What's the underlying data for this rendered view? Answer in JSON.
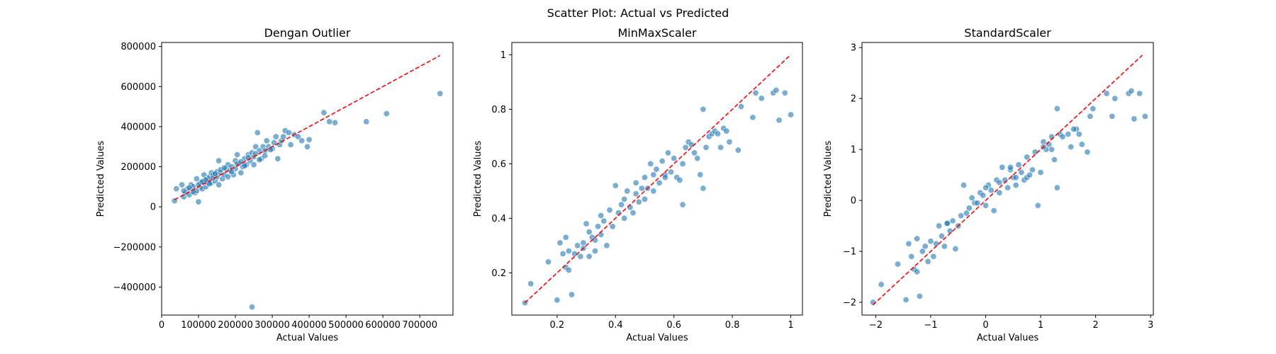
{
  "suptitle": "Scatter Plot: Actual vs Predicted",
  "style": {
    "point_color": "#1f77b4",
    "line_color": "#ff0000",
    "point_alpha": 0.6
  },
  "chart_data": [
    {
      "type": "scatter",
      "title": "Dengan Outlier",
      "xlabel": "Actual Values",
      "ylabel": "Predicted Values",
      "xlim": [
        0,
        790000
      ],
      "ylim": [
        -540000,
        820000
      ],
      "xticks": [
        0,
        100000,
        200000,
        300000,
        400000,
        500000,
        600000,
        700000
      ],
      "yticks": [
        -400000,
        -200000,
        0,
        200000,
        400000,
        600000,
        800000
      ],
      "reference_line": {
        "style": "dashed",
        "from": [
          35000,
          35000
        ],
        "to": [
          755000,
          755000
        ]
      },
      "points": [
        [
          35000,
          30000
        ],
        [
          40000,
          90000
        ],
        [
          55000,
          110000
        ],
        [
          60000,
          50000
        ],
        [
          65000,
          70000
        ],
        [
          70000,
          90000
        ],
        [
          75000,
          60000
        ],
        [
          80000,
          110000
        ],
        [
          85000,
          100000
        ],
        [
          90000,
          70000
        ],
        [
          95000,
          140000
        ],
        [
          95000,
          80000
        ],
        [
          100000,
          25000
        ],
        [
          105000,
          100000
        ],
        [
          105000,
          120000
        ],
        [
          110000,
          90000
        ],
        [
          115000,
          130000
        ],
        [
          115000,
          160000
        ],
        [
          120000,
          100000
        ],
        [
          125000,
          140000
        ],
        [
          125000,
          120000
        ],
        [
          130000,
          150000
        ],
        [
          135000,
          120000
        ],
        [
          135000,
          170000
        ],
        [
          140000,
          160000
        ],
        [
          145000,
          130000
        ],
        [
          150000,
          175000
        ],
        [
          150000,
          150000
        ],
        [
          155000,
          110000
        ],
        [
          155000,
          230000
        ],
        [
          160000,
          170000
        ],
        [
          165000,
          140000
        ],
        [
          170000,
          160000
        ],
        [
          175000,
          190000
        ],
        [
          180000,
          150000
        ],
        [
          180000,
          210000
        ],
        [
          185000,
          180000
        ],
        [
          190000,
          200000
        ],
        [
          195000,
          160000
        ],
        [
          200000,
          190000
        ],
        [
          200000,
          230000
        ],
        [
          205000,
          260000
        ],
        [
          210000,
          215000
        ],
        [
          215000,
          170000
        ],
        [
          220000,
          200000
        ],
        [
          225000,
          240000
        ],
        [
          230000,
          210000
        ],
        [
          235000,
          260000
        ],
        [
          240000,
          230000
        ],
        [
          245000,
          270000
        ],
        [
          250000,
          250000
        ],
        [
          250000,
          210000
        ],
        [
          255000,
          300000
        ],
        [
          260000,
          370000
        ],
        [
          265000,
          280000
        ],
        [
          270000,
          240000
        ],
        [
          275000,
          300000
        ],
        [
          280000,
          280000
        ],
        [
          285000,
          330000
        ],
        [
          290000,
          300000
        ],
        [
          300000,
          290000
        ],
        [
          305000,
          320000
        ],
        [
          310000,
          350000
        ],
        [
          315000,
          240000
        ],
        [
          320000,
          310000
        ],
        [
          325000,
          330000
        ],
        [
          330000,
          350000
        ],
        [
          335000,
          380000
        ],
        [
          345000,
          370000
        ],
        [
          350000,
          310000
        ],
        [
          360000,
          360000
        ],
        [
          370000,
          350000
        ],
        [
          380000,
          330000
        ],
        [
          395000,
          300000
        ],
        [
          400000,
          335000
        ],
        [
          440000,
          470000
        ],
        [
          455000,
          425000
        ],
        [
          470000,
          420000
        ],
        [
          555000,
          425000
        ],
        [
          610000,
          465000
        ],
        [
          755000,
          565000
        ],
        [
          245000,
          -500000
        ],
        [
          60000,
          80000
        ],
        [
          75000,
          95000
        ],
        [
          85000,
          75000
        ],
        [
          100000,
          110000
        ],
        [
          110000,
          125000
        ],
        [
          120000,
          135000
        ],
        [
          130000,
          115000
        ],
        [
          140000,
          145000
        ],
        [
          145000,
          165000
        ],
        [
          160000,
          185000
        ],
        [
          170000,
          195000
        ],
        [
          190000,
          175000
        ],
        [
          205000,
          215000
        ],
        [
          215000,
          225000
        ],
        [
          225000,
          205000
        ],
        [
          235000,
          245000
        ],
        [
          255000,
          265000
        ],
        [
          265000,
          235000
        ],
        [
          280000,
          255000
        ],
        [
          295000,
          285000
        ]
      ]
    },
    {
      "type": "scatter",
      "title": "MinMaxScaler",
      "xlabel": "Actual Values",
      "ylabel": "Predicted Values",
      "xlim": [
        0.045,
        1.04
      ],
      "ylim": [
        0.045,
        1.045
      ],
      "xticks": [
        0.2,
        0.4,
        0.6,
        0.8,
        1.0
      ],
      "yticks": [
        0.2,
        0.4,
        0.6,
        0.8,
        1.0
      ],
      "reference_line": {
        "style": "dashed",
        "from": [
          0.09,
          0.09
        ],
        "to": [
          1.0,
          1.0
        ]
      },
      "points": [
        [
          0.09,
          0.09
        ],
        [
          0.11,
          0.16
        ],
        [
          0.17,
          0.24
        ],
        [
          0.2,
          0.1
        ],
        [
          0.21,
          0.31
        ],
        [
          0.22,
          0.27
        ],
        [
          0.23,
          0.33
        ],
        [
          0.23,
          0.22
        ],
        [
          0.24,
          0.28
        ],
        [
          0.24,
          0.21
        ],
        [
          0.25,
          0.12
        ],
        [
          0.26,
          0.27
        ],
        [
          0.27,
          0.3
        ],
        [
          0.28,
          0.26
        ],
        [
          0.29,
          0.31
        ],
        [
          0.3,
          0.38
        ],
        [
          0.31,
          0.35
        ],
        [
          0.31,
          0.26
        ],
        [
          0.32,
          0.33
        ],
        [
          0.33,
          0.28
        ],
        [
          0.34,
          0.37
        ],
        [
          0.35,
          0.34
        ],
        [
          0.35,
          0.41
        ],
        [
          0.36,
          0.39
        ],
        [
          0.37,
          0.3
        ],
        [
          0.38,
          0.43
        ],
        [
          0.39,
          0.37
        ],
        [
          0.4,
          0.52
        ],
        [
          0.41,
          0.42
        ],
        [
          0.42,
          0.45
        ],
        [
          0.43,
          0.47
        ],
        [
          0.44,
          0.5
        ],
        [
          0.45,
          0.44
        ],
        [
          0.46,
          0.42
        ],
        [
          0.47,
          0.53
        ],
        [
          0.48,
          0.46
        ],
        [
          0.49,
          0.51
        ],
        [
          0.5,
          0.55
        ],
        [
          0.5,
          0.47
        ],
        [
          0.51,
          0.51
        ],
        [
          0.52,
          0.6
        ],
        [
          0.53,
          0.5
        ],
        [
          0.54,
          0.58
        ],
        [
          0.55,
          0.53
        ],
        [
          0.56,
          0.61
        ],
        [
          0.57,
          0.56
        ],
        [
          0.58,
          0.64
        ],
        [
          0.59,
          0.57
        ],
        [
          0.6,
          0.62
        ],
        [
          0.61,
          0.55
        ],
        [
          0.62,
          0.54
        ],
        [
          0.63,
          0.45
        ],
        [
          0.64,
          0.66
        ],
        [
          0.65,
          0.68
        ],
        [
          0.66,
          0.67
        ],
        [
          0.68,
          0.62
        ],
        [
          0.69,
          0.56
        ],
        [
          0.7,
          0.8
        ],
        [
          0.7,
          0.51
        ],
        [
          0.71,
          0.66
        ],
        [
          0.72,
          0.7
        ],
        [
          0.73,
          0.71
        ],
        [
          0.74,
          0.72
        ],
        [
          0.75,
          0.71
        ],
        [
          0.76,
          0.66
        ],
        [
          0.77,
          0.73
        ],
        [
          0.78,
          0.72
        ],
        [
          0.79,
          0.68
        ],
        [
          0.82,
          0.65
        ],
        [
          0.83,
          0.81
        ],
        [
          0.87,
          0.77
        ],
        [
          0.88,
          0.86
        ],
        [
          0.9,
          0.84
        ],
        [
          0.94,
          0.86
        ],
        [
          0.95,
          0.87
        ],
        [
          0.96,
          0.76
        ],
        [
          0.98,
          0.86
        ],
        [
          1.0,
          0.78
        ],
        [
          0.29,
          0.29
        ],
        [
          0.33,
          0.32
        ],
        [
          0.43,
          0.4
        ],
        [
          0.47,
          0.49
        ],
        [
          0.53,
          0.56
        ],
        [
          0.57,
          0.55
        ],
        [
          0.63,
          0.6
        ],
        [
          0.67,
          0.64
        ]
      ]
    },
    {
      "type": "scatter",
      "title": "StandardScaler",
      "xlabel": "Actual Values",
      "ylabel": "Predicted Values",
      "xlim": [
        -2.25,
        3.05
      ],
      "ylim": [
        -2.25,
        3.1
      ],
      "xticks": [
        -2,
        -1,
        0,
        1,
        2,
        3
      ],
      "yticks": [
        -2,
        -1,
        0,
        1,
        2,
        3
      ],
      "reference_line": {
        "style": "dashed",
        "from": [
          -2.05,
          -2.05
        ],
        "to": [
          2.85,
          2.85
        ]
      },
      "points": [
        [
          -2.05,
          -2.0
        ],
        [
          -1.9,
          -1.65
        ],
        [
          -1.6,
          -1.25
        ],
        [
          -1.45,
          -1.95
        ],
        [
          -1.4,
          -0.85
        ],
        [
          -1.35,
          -1.1
        ],
        [
          -1.3,
          -1.35
        ],
        [
          -1.25,
          -1.4
        ],
        [
          -1.25,
          -0.75
        ],
        [
          -1.2,
          -1.88
        ],
        [
          -1.15,
          -1.0
        ],
        [
          -1.1,
          -0.9
        ],
        [
          -1.05,
          -1.2
        ],
        [
          -1.0,
          -0.8
        ],
        [
          -0.95,
          -1.1
        ],
        [
          -0.9,
          -0.85
        ],
        [
          -0.85,
          -0.5
        ],
        [
          -0.8,
          -0.7
        ],
        [
          -0.75,
          -0.9
        ],
        [
          -0.7,
          -0.45
        ],
        [
          -0.65,
          -0.6
        ],
        [
          -0.6,
          -0.4
        ],
        [
          -0.55,
          -0.95
        ],
        [
          -0.5,
          -0.5
        ],
        [
          -0.4,
          0.3
        ],
        [
          -0.35,
          -0.25
        ],
        [
          -0.3,
          -0.15
        ],
        [
          -0.2,
          -0.05
        ],
        [
          -0.1,
          0.15
        ],
        [
          -0.05,
          0.1
        ],
        [
          0.0,
          -0.1
        ],
        [
          0.05,
          0.3
        ],
        [
          0.1,
          0.2
        ],
        [
          0.15,
          -0.2
        ],
        [
          0.2,
          0.4
        ],
        [
          0.25,
          0.35
        ],
        [
          0.3,
          0.65
        ],
        [
          0.35,
          0.4
        ],
        [
          0.4,
          0.25
        ],
        [
          0.45,
          0.6
        ],
        [
          0.5,
          0.45
        ],
        [
          0.55,
          0.3
        ],
        [
          0.6,
          0.7
        ],
        [
          0.65,
          0.55
        ],
        [
          0.7,
          0.4
        ],
        [
          0.75,
          0.45
        ],
        [
          0.8,
          0.5
        ],
        [
          0.85,
          0.6
        ],
        [
          0.9,
          0.95
        ],
        [
          0.95,
          -0.1
        ],
        [
          1.0,
          0.55
        ],
        [
          1.05,
          1.15
        ],
        [
          1.1,
          1.0
        ],
        [
          1.15,
          1.1
        ],
        [
          1.2,
          1.0
        ],
        [
          1.25,
          0.8
        ],
        [
          1.3,
          1.8
        ],
        [
          1.3,
          0.25
        ],
        [
          1.35,
          1.3
        ],
        [
          1.4,
          1.25
        ],
        [
          1.5,
          1.3
        ],
        [
          1.55,
          1.05
        ],
        [
          1.65,
          1.4
        ],
        [
          1.7,
          1.3
        ],
        [
          1.75,
          1.1
        ],
        [
          1.85,
          0.95
        ],
        [
          1.9,
          1.65
        ],
        [
          1.95,
          1.8
        ],
        [
          2.2,
          2.1
        ],
        [
          2.3,
          1.65
        ],
        [
          2.35,
          2.0
        ],
        [
          2.6,
          2.1
        ],
        [
          2.65,
          2.15
        ],
        [
          2.7,
          1.6
        ],
        [
          2.8,
          2.1
        ],
        [
          2.9,
          1.65
        ],
        [
          -0.45,
          -0.3
        ],
        [
          -0.25,
          0.05
        ],
        [
          0.0,
          0.25
        ],
        [
          0.25,
          0.15
        ],
        [
          0.55,
          0.45
        ],
        [
          0.75,
          0.85
        ],
        [
          1.2,
          1.25
        ],
        [
          1.6,
          1.4
        ],
        [
          -0.7,
          -0.45
        ],
        [
          -0.15,
          -0.05
        ],
        [
          0.45,
          0.65
        ],
        [
          1.05,
          1.05
        ]
      ]
    }
  ]
}
